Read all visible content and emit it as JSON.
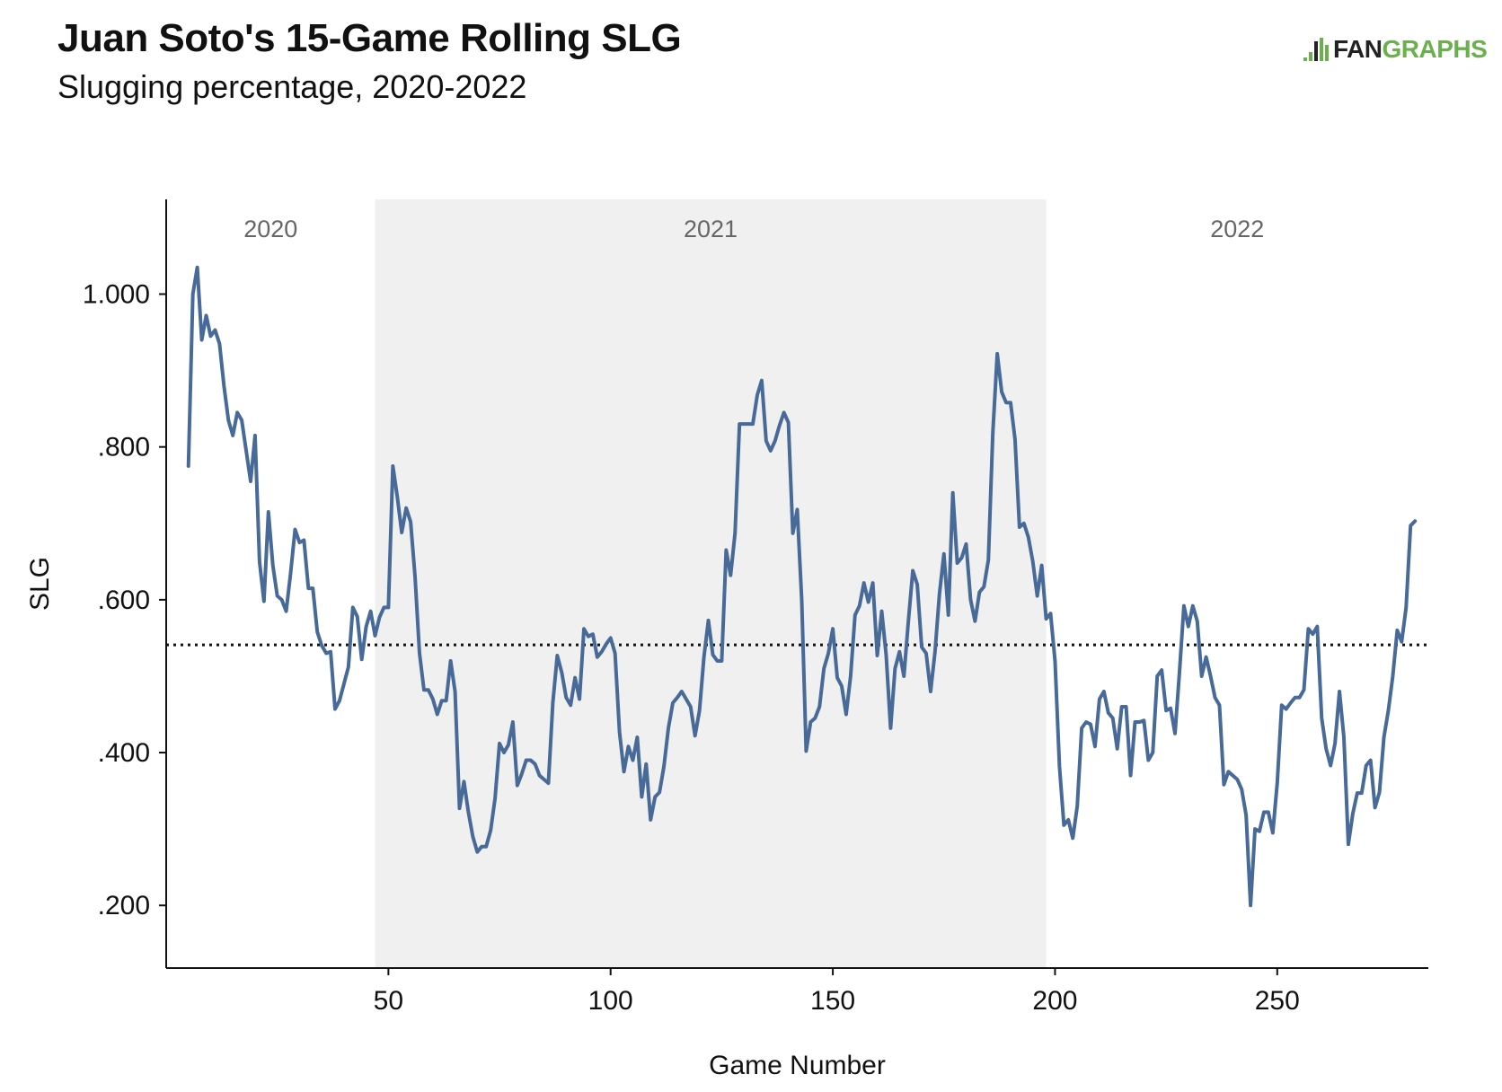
{
  "header": {
    "title": "Juan Soto's 15-Game Rolling SLG",
    "subtitle": "Slugging percentage, 2020-2022"
  },
  "logo": {
    "fan": "FAN",
    "graphs": "GRAPHS"
  },
  "colors": {
    "line": "#476a99",
    "shade": "#f0f0f0",
    "logo_green": "#6ab04c"
  },
  "chart_data": {
    "type": "line",
    "title": "Juan Soto's 15-Game Rolling SLG",
    "subtitle": "Slugging percentage, 2020-2022",
    "xlabel": "Game Number",
    "ylabel": "SLG",
    "xlim": [
      0,
      284
    ],
    "ylim": [
      0.118,
      1.124
    ],
    "xticks": [
      50,
      100,
      150,
      200,
      250
    ],
    "xtick_labels": [
      "50",
      "100",
      "150",
      "200",
      "250"
    ],
    "yticks": [
      0.2,
      0.4,
      0.6,
      0.8,
      1.0
    ],
    "ytick_labels": [
      ".200",
      ".400",
      ".600",
      ".800",
      "1.000"
    ],
    "grid": false,
    "reference_line": {
      "y": 0.541,
      "style": "dotted"
    },
    "seasons": [
      {
        "label": "2020",
        "start": 0,
        "end": 47,
        "shaded": false
      },
      {
        "label": "2021",
        "start": 47,
        "end": 198,
        "shaded": true
      },
      {
        "label": "2022",
        "start": 198,
        "end": 284,
        "shaded": false
      }
    ],
    "series": [
      {
        "x_start": 5,
        "values": [
          0.775,
          1.0,
          1.035,
          0.94,
          0.972,
          0.945,
          0.953,
          0.935,
          0.88,
          0.835,
          0.815,
          0.845,
          0.835,
          0.795,
          0.755,
          0.815,
          0.65,
          0.598,
          0.715,
          0.645,
          0.605,
          0.6,
          0.585,
          0.635,
          0.692,
          0.675,
          0.678,
          0.615,
          0.615,
          0.558,
          0.54,
          0.53,
          0.532,
          0.457,
          0.468,
          0.49,
          0.512,
          0.59,
          0.578,
          0.522,
          0.565,
          0.585,
          0.553,
          0.577,
          0.59,
          0.59,
          0.775,
          0.735,
          0.688,
          0.72,
          0.702,
          0.63,
          0.53,
          0.482,
          0.482,
          0.47,
          0.45,
          0.468,
          0.468,
          0.52,
          0.48,
          0.327,
          0.362,
          0.322,
          0.29,
          0.27,
          0.277,
          0.277,
          0.298,
          0.34,
          0.412,
          0.4,
          0.41,
          0.44,
          0.357,
          0.372,
          0.39,
          0.39,
          0.385,
          0.37,
          0.365,
          0.36,
          0.465,
          0.527,
          0.505,
          0.472,
          0.462,
          0.498,
          0.47,
          0.562,
          0.552,
          0.555,
          0.525,
          0.532,
          0.542,
          0.55,
          0.53,
          0.427,
          0.375,
          0.408,
          0.39,
          0.42,
          0.342,
          0.385,
          0.312,
          0.342,
          0.348,
          0.382,
          0.432,
          0.465,
          0.472,
          0.48,
          0.47,
          0.46,
          0.422,
          0.455,
          0.525,
          0.573,
          0.528,
          0.52,
          0.52,
          0.665,
          0.632,
          0.687,
          0.83,
          0.83,
          0.83,
          0.83,
          0.868,
          0.887,
          0.808,
          0.795,
          0.808,
          0.828,
          0.845,
          0.832,
          0.687,
          0.718,
          0.6,
          0.402,
          0.44,
          0.445,
          0.46,
          0.51,
          0.53,
          0.562,
          0.498,
          0.487,
          0.45,
          0.5,
          0.58,
          0.592,
          0.622,
          0.597,
          0.622,
          0.527,
          0.585,
          0.528,
          0.432,
          0.51,
          0.532,
          0.5,
          0.572,
          0.638,
          0.62,
          0.538,
          0.53,
          0.48,
          0.532,
          0.608,
          0.66,
          0.58,
          0.74,
          0.648,
          0.655,
          0.673,
          0.6,
          0.572,
          0.61,
          0.617,
          0.652,
          0.818,
          0.922,
          0.872,
          0.858,
          0.858,
          0.81,
          0.695,
          0.7,
          0.682,
          0.65,
          0.605,
          0.645,
          0.575,
          0.582,
          0.52,
          0.382,
          0.305,
          0.312,
          0.288,
          0.33,
          0.432,
          0.44,
          0.437,
          0.408,
          0.47,
          0.48,
          0.452,
          0.445,
          0.405,
          0.46,
          0.46,
          0.37,
          0.44,
          0.44,
          0.442,
          0.39,
          0.4,
          0.5,
          0.508,
          0.455,
          0.458,
          0.425,
          0.505,
          0.592,
          0.565,
          0.592,
          0.572,
          0.5,
          0.525,
          0.5,
          0.472,
          0.462,
          0.358,
          0.375,
          0.37,
          0.365,
          0.352,
          0.318,
          0.2,
          0.3,
          0.297,
          0.322,
          0.322,
          0.295,
          0.36,
          0.462,
          0.457,
          0.465,
          0.472,
          0.472,
          0.482,
          0.562,
          0.555,
          0.565,
          0.445,
          0.405,
          0.383,
          0.412,
          0.48,
          0.42,
          0.28,
          0.32,
          0.347,
          0.347,
          0.383,
          0.39,
          0.328,
          0.348,
          0.42,
          0.455,
          0.5,
          0.56,
          0.545,
          0.59,
          0.697,
          0.703
        ]
      }
    ]
  }
}
